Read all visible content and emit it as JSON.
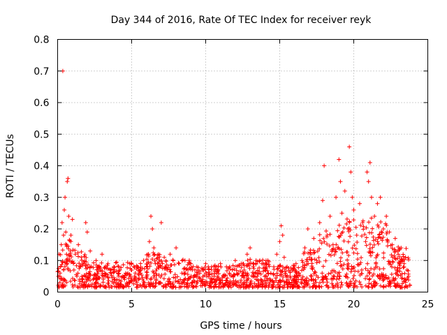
{
  "chart_data": {
    "type": "scatter",
    "title": "Day 344 of 2016, Rate Of TEC Index for receiver reyk",
    "xlabel": "GPS time / hours",
    "ylabel": "ROTI / TECUs",
    "xlim": [
      0,
      25
    ],
    "ylim": [
      0,
      0.8
    ],
    "xticks": [
      0,
      5,
      10,
      15,
      20,
      25
    ],
    "xtick_labels": [
      "0",
      "5",
      "10",
      "15",
      "20",
      "25"
    ],
    "yticks": [
      0,
      0.1,
      0.2,
      0.3,
      0.4,
      0.5,
      0.6,
      0.7,
      0.8
    ],
    "ytick_labels": [
      "0",
      "0.1",
      "0.2",
      "0.3",
      "0.4",
      "0.5",
      "0.6",
      "0.7",
      "0.8"
    ],
    "grid": true,
    "marker": "plus",
    "color": "#ff0000",
    "series": [
      {
        "name": "ROTI",
        "points": [
          [
            0.05,
            0.05
          ],
          [
            0.1,
            0.12
          ],
          [
            0.15,
            0.03
          ],
          [
            0.2,
            0.08
          ],
          [
            0.25,
            0.15
          ],
          [
            0.3,
            0.22
          ],
          [
            0.35,
            0.7
          ],
          [
            0.4,
            0.18
          ],
          [
            0.45,
            0.26
          ],
          [
            0.5,
            0.3
          ],
          [
            0.55,
            0.19
          ],
          [
            0.6,
            0.12
          ],
          [
            0.65,
            0.35
          ],
          [
            0.7,
            0.36
          ],
          [
            0.75,
            0.24
          ],
          [
            0.8,
            0.1
          ],
          [
            0.9,
            0.18
          ],
          [
            1.0,
            0.23
          ],
          [
            1.1,
            0.07
          ],
          [
            1.2,
            0.12
          ],
          [
            1.3,
            0.05
          ],
          [
            1.4,
            0.15
          ],
          [
            1.5,
            0.08
          ],
          [
            1.6,
            0.11
          ],
          [
            1.7,
            0.04
          ],
          [
            1.8,
            0.09
          ],
          [
            1.9,
            0.22
          ],
          [
            2.0,
            0.19
          ],
          [
            2.1,
            0.06
          ],
          [
            2.2,
            0.13
          ],
          [
            2.4,
            0.04
          ],
          [
            2.6,
            0.1
          ],
          [
            2.8,
            0.08
          ],
          [
            3.0,
            0.12
          ],
          [
            3.2,
            0.05
          ],
          [
            3.4,
            0.09
          ],
          [
            3.6,
            0.06
          ],
          [
            3.8,
            0.08
          ],
          [
            4.0,
            0.04
          ],
          [
            4.2,
            0.07
          ],
          [
            4.4,
            0.05
          ],
          [
            4.6,
            0.06
          ],
          [
            4.8,
            0.03
          ],
          [
            5.0,
            0.07
          ],
          [
            5.2,
            0.05
          ],
          [
            5.4,
            0.08
          ],
          [
            5.6,
            0.06
          ],
          [
            5.8,
            0.1
          ],
          [
            6.0,
            0.08
          ],
          [
            6.2,
            0.16
          ],
          [
            6.3,
            0.24
          ],
          [
            6.4,
            0.2
          ],
          [
            6.5,
            0.14
          ],
          [
            6.6,
            0.09
          ],
          [
            6.8,
            0.12
          ],
          [
            7.0,
            0.22
          ],
          [
            7.2,
            0.11
          ],
          [
            7.4,
            0.07
          ],
          [
            7.6,
            0.12
          ],
          [
            7.8,
            0.1
          ],
          [
            8.0,
            0.14
          ],
          [
            8.2,
            0.09
          ],
          [
            8.4,
            0.06
          ],
          [
            8.6,
            0.1
          ],
          [
            8.8,
            0.07
          ],
          [
            9.0,
            0.09
          ],
          [
            9.2,
            0.05
          ],
          [
            9.4,
            0.08
          ],
          [
            9.6,
            0.06
          ],
          [
            9.8,
            0.07
          ],
          [
            10.0,
            0.09
          ],
          [
            10.2,
            0.05
          ],
          [
            10.4,
            0.08
          ],
          [
            10.6,
            0.06
          ],
          [
            10.8,
            0.07
          ],
          [
            11.0,
            0.09
          ],
          [
            11.2,
            0.05
          ],
          [
            11.4,
            0.08
          ],
          [
            11.6,
            0.06
          ],
          [
            11.8,
            0.07
          ],
          [
            12.0,
            0.1
          ],
          [
            12.2,
            0.06
          ],
          [
            12.4,
            0.09
          ],
          [
            12.6,
            0.07
          ],
          [
            12.8,
            0.12
          ],
          [
            13.0,
            0.14
          ],
          [
            13.2,
            0.08
          ],
          [
            13.4,
            0.1
          ],
          [
            13.6,
            0.06
          ],
          [
            13.8,
            0.09
          ],
          [
            14.0,
            0.07
          ],
          [
            14.2,
            0.1
          ],
          [
            14.4,
            0.06
          ],
          [
            14.6,
            0.08
          ],
          [
            14.8,
            0.12
          ],
          [
            15.0,
            0.16
          ],
          [
            15.1,
            0.21
          ],
          [
            15.2,
            0.18
          ],
          [
            15.3,
            0.11
          ],
          [
            15.5,
            0.08
          ],
          [
            15.7,
            0.05
          ],
          [
            15.9,
            0.07
          ],
          [
            16.1,
            0.09
          ],
          [
            16.3,
            0.06
          ],
          [
            16.5,
            0.1
          ],
          [
            16.7,
            0.14
          ],
          [
            16.9,
            0.2
          ],
          [
            17.1,
            0.12
          ],
          [
            17.3,
            0.17
          ],
          [
            17.5,
            0.1
          ],
          [
            17.7,
            0.22
          ],
          [
            17.9,
            0.29
          ],
          [
            18.0,
            0.4
          ],
          [
            18.2,
            0.18
          ],
          [
            18.4,
            0.24
          ],
          [
            18.6,
            0.15
          ],
          [
            18.8,
            0.3
          ],
          [
            19.0,
            0.42
          ],
          [
            19.1,
            0.35
          ],
          [
            19.2,
            0.25
          ],
          [
            19.4,
            0.32
          ],
          [
            19.6,
            0.2
          ],
          [
            19.7,
            0.46
          ],
          [
            19.8,
            0.38
          ],
          [
            19.9,
            0.3
          ],
          [
            20.0,
            0.26
          ],
          [
            20.2,
            0.18
          ],
          [
            20.4,
            0.28
          ],
          [
            20.6,
            0.22
          ],
          [
            20.8,
            0.16
          ],
          [
            20.9,
            0.38
          ],
          [
            21.0,
            0.35
          ],
          [
            21.1,
            0.41
          ],
          [
            21.2,
            0.3
          ],
          [
            21.4,
            0.24
          ],
          [
            21.6,
            0.28
          ],
          [
            21.8,
            0.3
          ],
          [
            22.0,
            0.2
          ],
          [
            22.2,
            0.24
          ],
          [
            22.4,
            0.19
          ],
          [
            22.6,
            0.15
          ],
          [
            22.8,
            0.17
          ],
          [
            23.0,
            0.12
          ],
          [
            23.2,
            0.14
          ],
          [
            23.4,
            0.09
          ],
          [
            23.5,
            0.11
          ],
          [
            23.6,
            0.07
          ],
          [
            23.7,
            0.05
          ]
        ],
        "note_dense_band_generated_by_script": true
      }
    ]
  }
}
